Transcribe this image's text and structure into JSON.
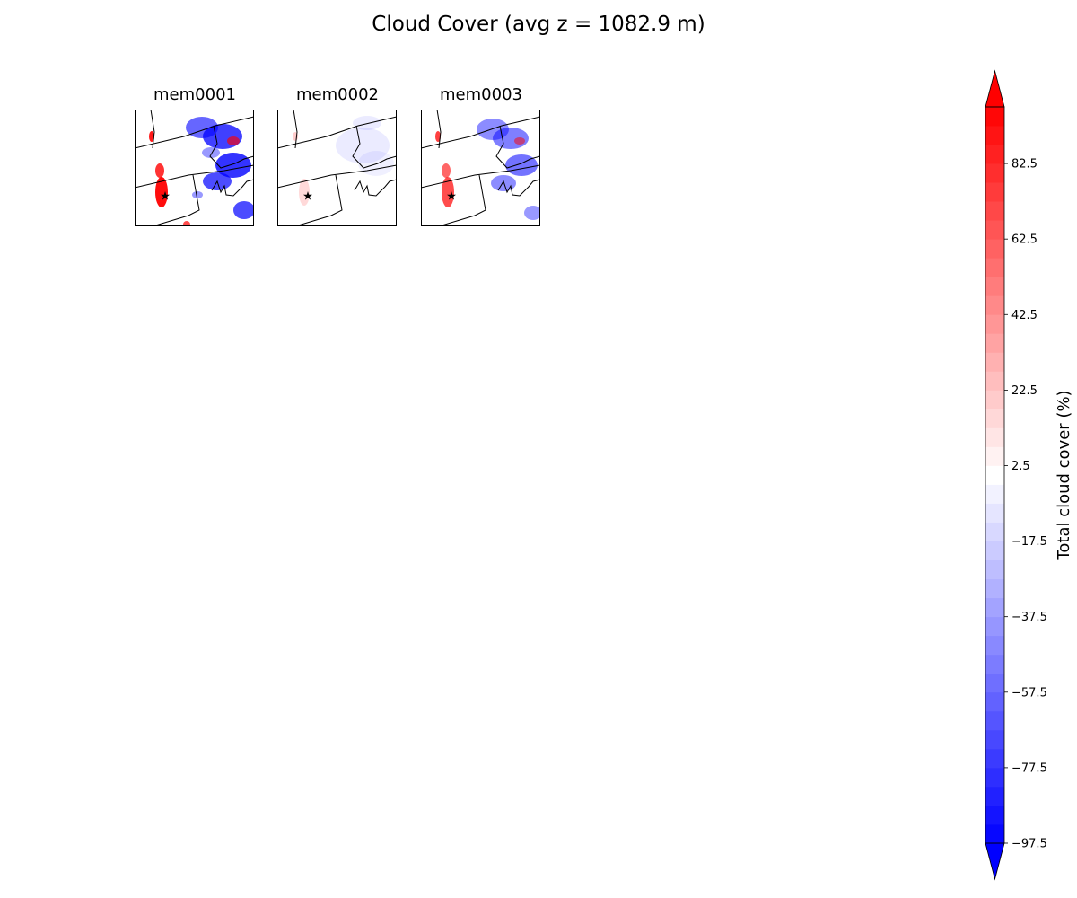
{
  "title": "Cloud Cover (avg z = 1082.9 m)",
  "chart_data": {
    "type": "heatmap",
    "title": "Cloud Cover (avg z = 1082.9 m)",
    "panels": [
      {
        "name": "mem0001"
      },
      {
        "name": "mem0002"
      },
      {
        "name": "mem0003"
      }
    ],
    "marker": "black star",
    "colorbar": {
      "label": "Total cloud cover (%)",
      "cmap": "bwr",
      "vmin": -97.5,
      "vmax": 97.5,
      "step": 5,
      "extend": "both",
      "ticks": [
        -97.5,
        -77.5,
        -57.5,
        -37.5,
        -17.5,
        2.5,
        22.5,
        42.5,
        62.5,
        82.5
      ],
      "tick_labels": [
        "−97.5",
        "−77.5",
        "−57.5",
        "−37.5",
        "−17.5",
        "2.5",
        "22.5",
        "42.5",
        "62.5",
        "82.5"
      ],
      "low_color": "#0000ff",
      "high_color": "#ff0000"
    }
  }
}
